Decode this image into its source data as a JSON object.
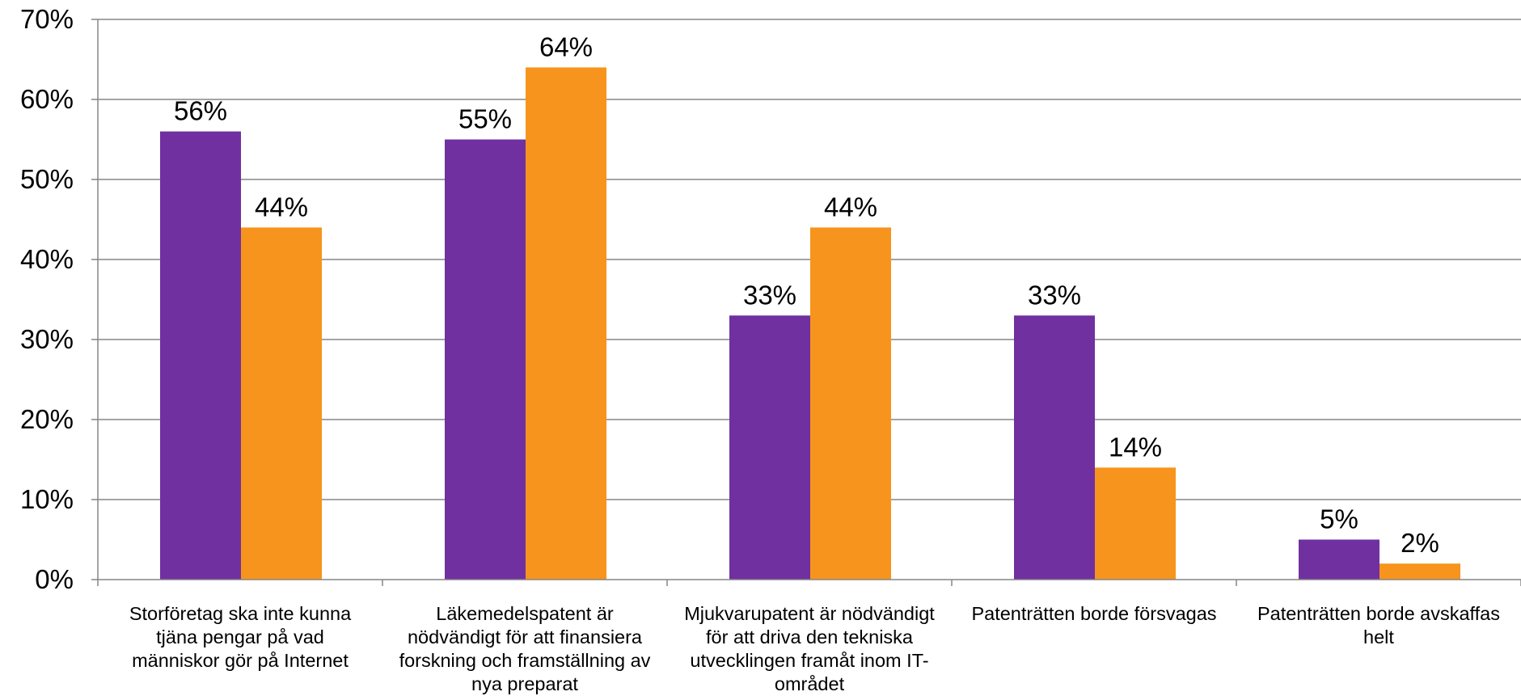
{
  "chart_data": {
    "type": "bar",
    "categories": [
      [
        "Storföretag ska inte kunna",
        "tjäna pengar på vad",
        "människor gör på Internet"
      ],
      [
        "Läkemedelspatent är",
        "nödvändigt för att finansiera",
        "forskning och framställning av",
        "nya preparat"
      ],
      [
        "Mjukvarupatent är nödvändigt",
        "för att driva den tekniska",
        "utvecklingen framåt inom IT-",
        "området"
      ],
      [
        "Patenträtten borde försvagas"
      ],
      [
        "Patenträtten borde avskaffas",
        "helt"
      ]
    ],
    "series": [
      {
        "color": "#7030a0",
        "values": [
          56,
          55,
          33,
          33,
          5
        ],
        "labels": [
          "56%",
          "55%",
          "33%",
          "33%",
          "5%"
        ]
      },
      {
        "color": "#f7941d",
        "values": [
          44,
          64,
          44,
          14,
          2
        ],
        "labels": [
          "44%",
          "64%",
          "44%",
          "14%",
          "2%"
        ]
      }
    ],
    "ylim": [
      0,
      70
    ],
    "yticks": [
      0,
      10,
      20,
      30,
      40,
      50,
      60,
      70
    ],
    "ytick_labels": [
      "0%",
      "10%",
      "20%",
      "30%",
      "40%",
      "50%",
      "60%",
      "70%"
    ],
    "grid": true,
    "legend": false,
    "colors": {
      "grid": "#868686",
      "text": "#000000"
    }
  }
}
